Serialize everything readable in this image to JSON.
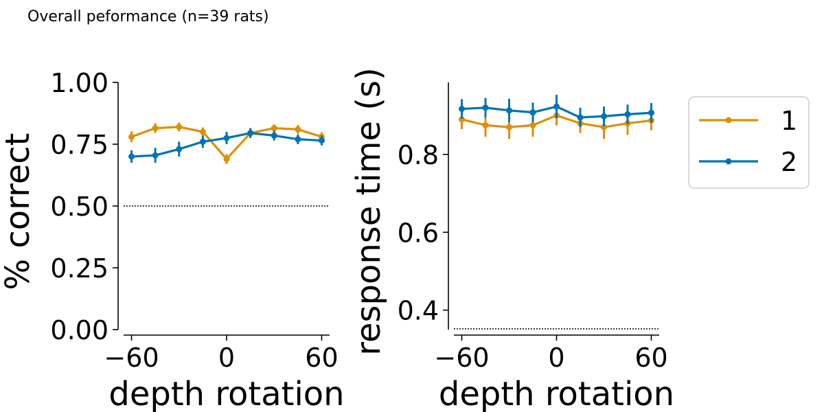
{
  "figure_title": "Overall peformance (n=39 rats)",
  "colors": {
    "series1": "#de8f05",
    "series2": "#0173b2"
  },
  "legend": {
    "entries": [
      "1",
      "2"
    ],
    "placement": "right"
  },
  "chart_data": [
    {
      "type": "line",
      "xlabel": "depth rotation",
      "ylabel": "% correct",
      "xlim": [
        -65,
        65
      ],
      "ylim": [
        0,
        1.0
      ],
      "xticks": [
        -60,
        0,
        60
      ],
      "xtick_labels": [
        "−60",
        "0",
        "60"
      ],
      "yticks": [
        0,
        0.25,
        0.5,
        0.75,
        1.0
      ],
      "ytick_labels": [
        "0.00",
        "0.25",
        "0.50",
        "0.75",
        "1.00"
      ],
      "reference_line": {
        "y": 0.5,
        "style": "dotted"
      },
      "x": [
        -60,
        -45,
        -30,
        -15,
        0,
        15,
        30,
        45,
        60
      ],
      "series": [
        {
          "name": "1",
          "values": [
            0.78,
            0.815,
            0.82,
            0.8,
            0.69,
            0.795,
            0.815,
            0.81,
            0.78
          ],
          "err": [
            0.022,
            0.02,
            0.018,
            0.018,
            0.02,
            0.02,
            0.015,
            0.018,
            0.018
          ]
        },
        {
          "name": "2",
          "values": [
            0.7,
            0.705,
            0.73,
            0.76,
            0.775,
            0.795,
            0.785,
            0.77,
            0.765
          ],
          "err": [
            0.025,
            0.03,
            0.03,
            0.025,
            0.025,
            0.02,
            0.02,
            0.02,
            0.02
          ]
        }
      ]
    },
    {
      "type": "line",
      "xlabel": "depth rotation",
      "ylabel": "response time (s)",
      "xlim": [
        -65,
        65
      ],
      "ylim": [
        0.35,
        0.985
      ],
      "xticks": [
        -60,
        0,
        60
      ],
      "xtick_labels": [
        "−60",
        "0",
        "60"
      ],
      "yticks": [
        0.4,
        0.6,
        0.8
      ],
      "ytick_labels": [
        "0.4",
        "0.6",
        "0.8"
      ],
      "reference_line": {
        "y": 0.352,
        "style": "dotted"
      },
      "x": [
        -60,
        -45,
        -30,
        -15,
        0,
        15,
        30,
        45,
        60
      ],
      "series": [
        {
          "name": "1",
          "values": [
            0.89,
            0.875,
            0.87,
            0.875,
            0.9,
            0.88,
            0.87,
            0.88,
            0.887
          ],
          "err": [
            0.025,
            0.03,
            0.03,
            0.03,
            0.025,
            0.025,
            0.03,
            0.03,
            0.025
          ]
        },
        {
          "name": "2",
          "values": [
            0.917,
            0.92,
            0.913,
            0.908,
            0.923,
            0.895,
            0.898,
            0.903,
            0.907
          ],
          "err": [
            0.025,
            0.025,
            0.03,
            0.025,
            0.03,
            0.025,
            0.025,
            0.025,
            0.025
          ]
        }
      ]
    }
  ]
}
